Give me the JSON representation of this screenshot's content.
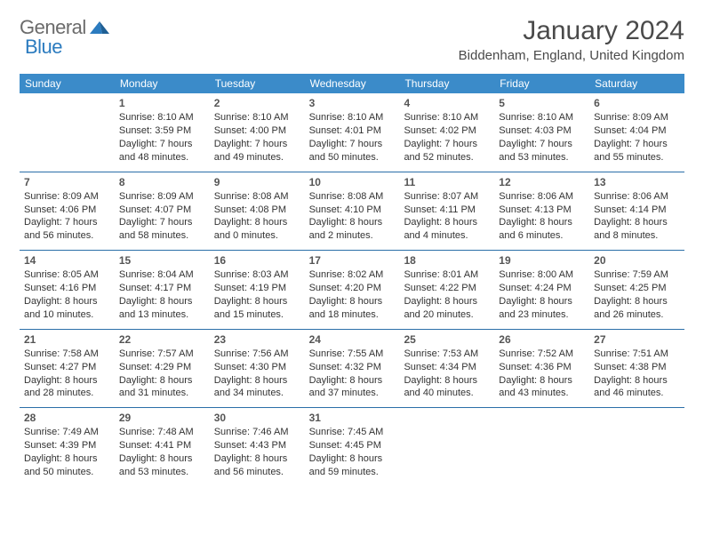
{
  "logo": {
    "text1": "General",
    "text2": "Blue"
  },
  "title": "January 2024",
  "location": "Biddenham, England, United Kingdom",
  "colors": {
    "header_bg": "#3b8bc9",
    "header_text": "#ffffff",
    "week_border": "#2b6fa8",
    "logo_gray": "#6b6b6b",
    "logo_blue": "#2b7bbf",
    "text": "#333333"
  },
  "day_names": [
    "Sunday",
    "Monday",
    "Tuesday",
    "Wednesday",
    "Thursday",
    "Friday",
    "Saturday"
  ],
  "weeks": [
    [
      {
        "n": "",
        "sr": "",
        "ss": "",
        "dl": ""
      },
      {
        "n": "1",
        "sr": "8:10 AM",
        "ss": "3:59 PM",
        "dl": "7 hours and 48 minutes."
      },
      {
        "n": "2",
        "sr": "8:10 AM",
        "ss": "4:00 PM",
        "dl": "7 hours and 49 minutes."
      },
      {
        "n": "3",
        "sr": "8:10 AM",
        "ss": "4:01 PM",
        "dl": "7 hours and 50 minutes."
      },
      {
        "n": "4",
        "sr": "8:10 AM",
        "ss": "4:02 PM",
        "dl": "7 hours and 52 minutes."
      },
      {
        "n": "5",
        "sr": "8:10 AM",
        "ss": "4:03 PM",
        "dl": "7 hours and 53 minutes."
      },
      {
        "n": "6",
        "sr": "8:09 AM",
        "ss": "4:04 PM",
        "dl": "7 hours and 55 minutes."
      }
    ],
    [
      {
        "n": "7",
        "sr": "8:09 AM",
        "ss": "4:06 PM",
        "dl": "7 hours and 56 minutes."
      },
      {
        "n": "8",
        "sr": "8:09 AM",
        "ss": "4:07 PM",
        "dl": "7 hours and 58 minutes."
      },
      {
        "n": "9",
        "sr": "8:08 AM",
        "ss": "4:08 PM",
        "dl": "8 hours and 0 minutes."
      },
      {
        "n": "10",
        "sr": "8:08 AM",
        "ss": "4:10 PM",
        "dl": "8 hours and 2 minutes."
      },
      {
        "n": "11",
        "sr": "8:07 AM",
        "ss": "4:11 PM",
        "dl": "8 hours and 4 minutes."
      },
      {
        "n": "12",
        "sr": "8:06 AM",
        "ss": "4:13 PM",
        "dl": "8 hours and 6 minutes."
      },
      {
        "n": "13",
        "sr": "8:06 AM",
        "ss": "4:14 PM",
        "dl": "8 hours and 8 minutes."
      }
    ],
    [
      {
        "n": "14",
        "sr": "8:05 AM",
        "ss": "4:16 PM",
        "dl": "8 hours and 10 minutes."
      },
      {
        "n": "15",
        "sr": "8:04 AM",
        "ss": "4:17 PM",
        "dl": "8 hours and 13 minutes."
      },
      {
        "n": "16",
        "sr": "8:03 AM",
        "ss": "4:19 PM",
        "dl": "8 hours and 15 minutes."
      },
      {
        "n": "17",
        "sr": "8:02 AM",
        "ss": "4:20 PM",
        "dl": "8 hours and 18 minutes."
      },
      {
        "n": "18",
        "sr": "8:01 AM",
        "ss": "4:22 PM",
        "dl": "8 hours and 20 minutes."
      },
      {
        "n": "19",
        "sr": "8:00 AM",
        "ss": "4:24 PM",
        "dl": "8 hours and 23 minutes."
      },
      {
        "n": "20",
        "sr": "7:59 AM",
        "ss": "4:25 PM",
        "dl": "8 hours and 26 minutes."
      }
    ],
    [
      {
        "n": "21",
        "sr": "7:58 AM",
        "ss": "4:27 PM",
        "dl": "8 hours and 28 minutes."
      },
      {
        "n": "22",
        "sr": "7:57 AM",
        "ss": "4:29 PM",
        "dl": "8 hours and 31 minutes."
      },
      {
        "n": "23",
        "sr": "7:56 AM",
        "ss": "4:30 PM",
        "dl": "8 hours and 34 minutes."
      },
      {
        "n": "24",
        "sr": "7:55 AM",
        "ss": "4:32 PM",
        "dl": "8 hours and 37 minutes."
      },
      {
        "n": "25",
        "sr": "7:53 AM",
        "ss": "4:34 PM",
        "dl": "8 hours and 40 minutes."
      },
      {
        "n": "26",
        "sr": "7:52 AM",
        "ss": "4:36 PM",
        "dl": "8 hours and 43 minutes."
      },
      {
        "n": "27",
        "sr": "7:51 AM",
        "ss": "4:38 PM",
        "dl": "8 hours and 46 minutes."
      }
    ],
    [
      {
        "n": "28",
        "sr": "7:49 AM",
        "ss": "4:39 PM",
        "dl": "8 hours and 50 minutes."
      },
      {
        "n": "29",
        "sr": "7:48 AM",
        "ss": "4:41 PM",
        "dl": "8 hours and 53 minutes."
      },
      {
        "n": "30",
        "sr": "7:46 AM",
        "ss": "4:43 PM",
        "dl": "8 hours and 56 minutes."
      },
      {
        "n": "31",
        "sr": "7:45 AM",
        "ss": "4:45 PM",
        "dl": "8 hours and 59 minutes."
      },
      {
        "n": "",
        "sr": "",
        "ss": "",
        "dl": ""
      },
      {
        "n": "",
        "sr": "",
        "ss": "",
        "dl": ""
      },
      {
        "n": "",
        "sr": "",
        "ss": "",
        "dl": ""
      }
    ]
  ],
  "labels": {
    "sunrise": "Sunrise: ",
    "sunset": "Sunset: ",
    "daylight": "Daylight: "
  }
}
